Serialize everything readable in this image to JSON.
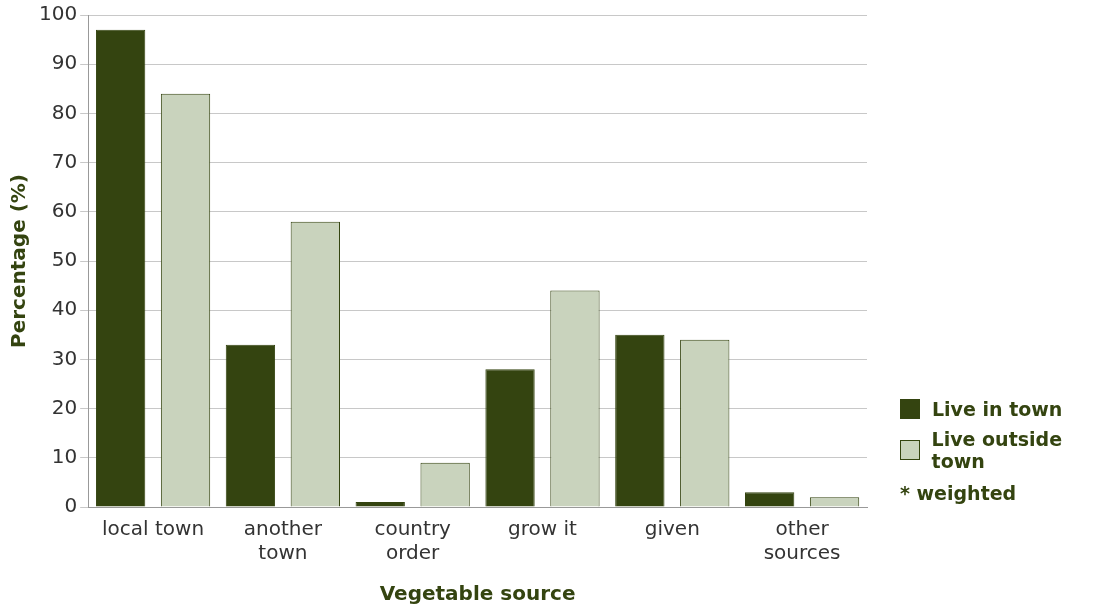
{
  "chart_data": {
    "type": "bar",
    "xlabel": "Vegetable source",
    "ylabel": "Percentage (%)",
    "categories": [
      "local town",
      "another town",
      "country order",
      "grow it",
      "given",
      "other sources"
    ],
    "series": [
      {
        "name": "Live in town",
        "color": "#344410",
        "values": [
          97,
          33,
          1,
          28,
          35,
          3
        ]
      },
      {
        "name": "Live outside town",
        "color": "#c9d3bd",
        "values": [
          84,
          58,
          9,
          44,
          34,
          2
        ]
      }
    ],
    "ylim": [
      0,
      100
    ],
    "yticks": [
      0,
      10,
      20,
      30,
      40,
      50,
      60,
      70,
      80,
      90,
      100
    ],
    "grid": "y",
    "legend": "right",
    "annotations": [
      "* weighted"
    ]
  }
}
